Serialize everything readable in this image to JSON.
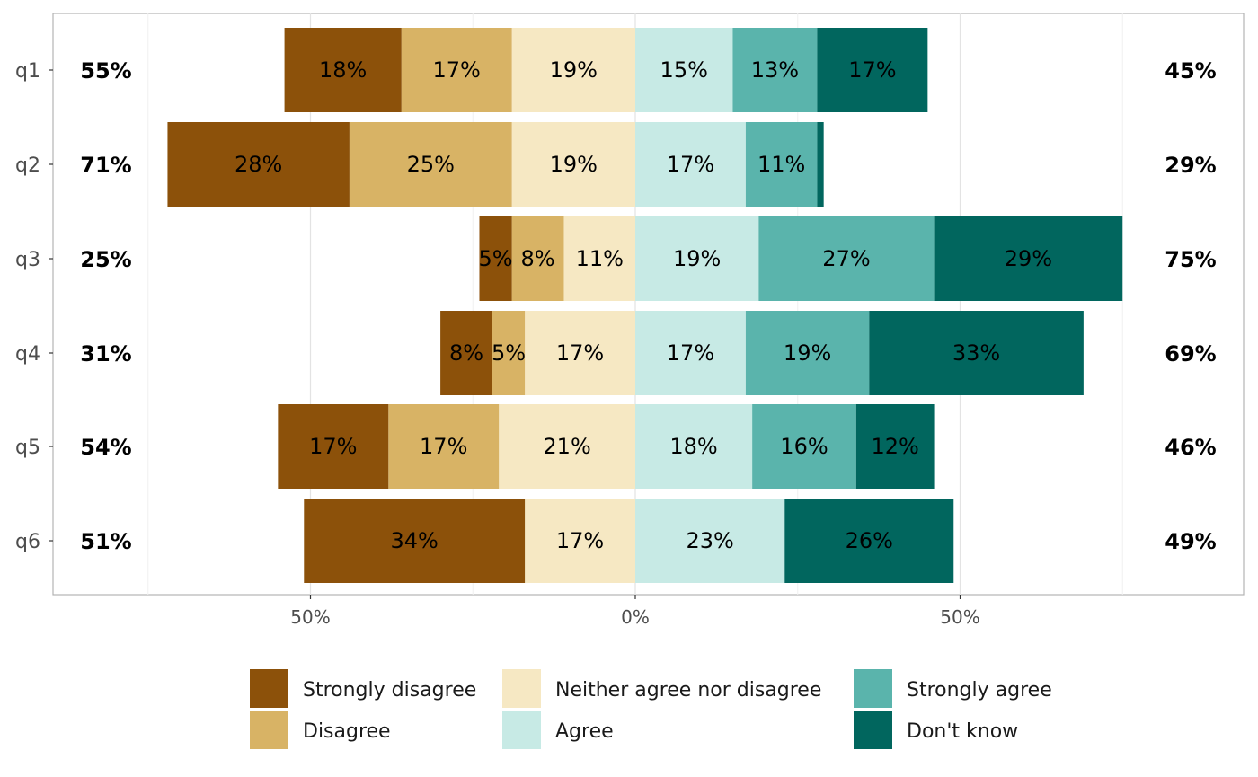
{
  "chart_data": {
    "type": "bar",
    "orientation": "horizontal",
    "stacked": "diverging",
    "categories": [
      "q1",
      "q2",
      "q3",
      "q4",
      "q5",
      "q6"
    ],
    "series": [
      {
        "name": "Strongly disagree",
        "color": "#8c510a",
        "side": "left",
        "values": [
          18,
          28,
          5,
          8,
          17,
          34
        ]
      },
      {
        "name": "Disagree",
        "color": "#d8b365",
        "side": "left",
        "values": [
          17,
          25,
          8,
          5,
          17,
          0
        ]
      },
      {
        "name": "Neither agree nor disagree",
        "color": "#f6e8c3",
        "side": "left",
        "values": [
          19,
          19,
          11,
          17,
          21,
          17
        ]
      },
      {
        "name": "Agree",
        "color": "#c7eae5",
        "side": "right",
        "values": [
          15,
          17,
          19,
          17,
          18,
          23
        ]
      },
      {
        "name": "Strongly agree",
        "color": "#5ab4ac",
        "side": "right",
        "values": [
          13,
          11,
          27,
          19,
          16,
          0
        ]
      },
      {
        "name": "Don't know",
        "color": "#01665e",
        "side": "right",
        "values": [
          17,
          1,
          29,
          33,
          12,
          26
        ]
      }
    ],
    "segment_labels": [
      [
        "18%",
        "17%",
        "19%",
        "15%",
        "13%",
        "17%"
      ],
      [
        "28%",
        "25%",
        "19%",
        "17%",
        "11%",
        ""
      ],
      [
        "5%",
        "8%",
        "11%",
        "19%",
        "27%",
        "29%"
      ],
      [
        "8%",
        "5%",
        "17%",
        "17%",
        "19%",
        "33%"
      ],
      [
        "17%",
        "17%",
        "21%",
        "18%",
        "16%",
        "12%"
      ],
      [
        "34%",
        "",
        "17%",
        "23%",
        "",
        "26%"
      ]
    ],
    "left_totals": [
      "55%",
      "71%",
      "25%",
      "31%",
      "54%",
      "51%"
    ],
    "right_totals": [
      "45%",
      "29%",
      "75%",
      "69%",
      "46%",
      "49%"
    ],
    "xlim": [
      -90,
      94
    ],
    "xticks": [
      -50,
      0,
      50
    ],
    "xtick_labels": [
      "50%",
      "0%",
      "50%"
    ],
    "grid": true,
    "legend_position": "bottom",
    "title": "",
    "xlabel": "",
    "ylabel": ""
  }
}
